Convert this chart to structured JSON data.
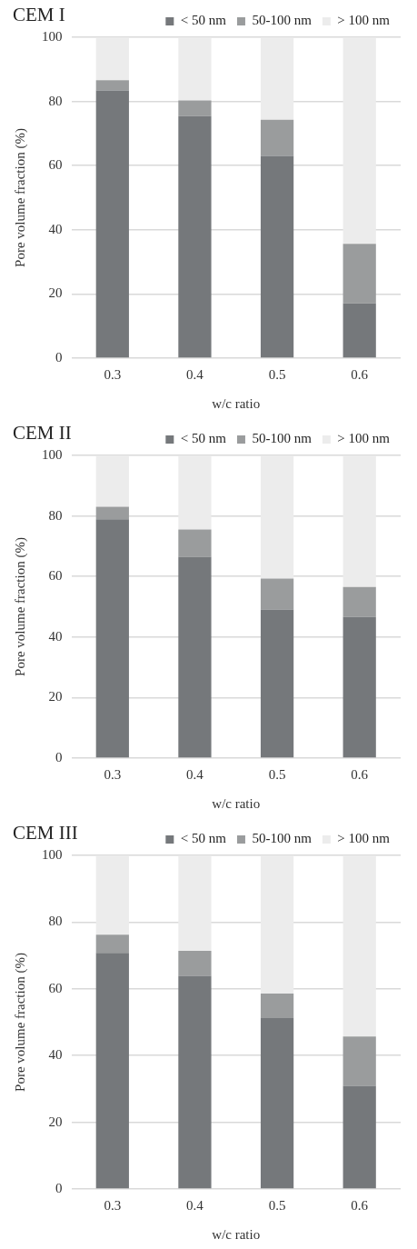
{
  "chart_data": [
    {
      "type": "bar",
      "title": "CEM I",
      "xlabel": "w/c ratio",
      "ylabel": "Pore volume fraction (%)",
      "categories": [
        "0.3",
        "0.4",
        "0.5",
        "0.6"
      ],
      "stacked": true,
      "ylim": [
        0,
        100
      ],
      "yticks": [
        0,
        20,
        40,
        60,
        80,
        100
      ],
      "grid": "y",
      "legend": "top right",
      "series": [
        {
          "name": "< 50 nm",
          "color": "#75787b",
          "values": [
            83.4,
            75.4,
            63.0,
            17.1
          ]
        },
        {
          "name": "50-100 nm",
          "color": "#9a9c9d",
          "values": [
            3.2,
            4.9,
            11.3,
            18.5
          ]
        },
        {
          "name": "> 100 nm",
          "color": "#ececec",
          "values": [
            13.4,
            19.7,
            25.7,
            64.4
          ]
        }
      ]
    },
    {
      "type": "bar",
      "title": "CEM II",
      "xlabel": "w/c ratio",
      "ylabel": "Pore volume fraction (%)",
      "categories": [
        "0.3",
        "0.4",
        "0.5",
        "0.6"
      ],
      "stacked": true,
      "ylim": [
        0,
        100
      ],
      "yticks": [
        0,
        20,
        40,
        60,
        80,
        100
      ],
      "grid": "y",
      "legend": "top right",
      "series": [
        {
          "name": "< 50 nm",
          "color": "#75787b",
          "values": [
            78.9,
            66.5,
            49.1,
            46.6
          ]
        },
        {
          "name": "50-100 nm",
          "color": "#9a9c9d",
          "values": [
            4.1,
            9.0,
            10.2,
            9.9
          ]
        },
        {
          "name": "> 100 nm",
          "color": "#ececec",
          "values": [
            17.0,
            24.5,
            40.7,
            43.5
          ]
        }
      ]
    },
    {
      "type": "bar",
      "title": "CEM III",
      "xlabel": "w/c ratio",
      "ylabel": "Pore volume fraction (%)",
      "categories": [
        "0.3",
        "0.4",
        "0.5",
        "0.6"
      ],
      "stacked": true,
      "ylim": [
        0,
        100
      ],
      "yticks": [
        0,
        20,
        40,
        60,
        80,
        100
      ],
      "grid": "y",
      "legend": "top right",
      "series": [
        {
          "name": "< 50 nm",
          "color": "#75787b",
          "values": [
            70.8,
            63.9,
            51.2,
            30.9
          ]
        },
        {
          "name": "50-100 nm",
          "color": "#9a9c9d",
          "values": [
            5.4,
            7.5,
            7.4,
            14.8
          ]
        },
        {
          "name": "> 100 nm",
          "color": "#ececec",
          "values": [
            23.8,
            28.6,
            41.4,
            54.3
          ]
        }
      ]
    }
  ]
}
